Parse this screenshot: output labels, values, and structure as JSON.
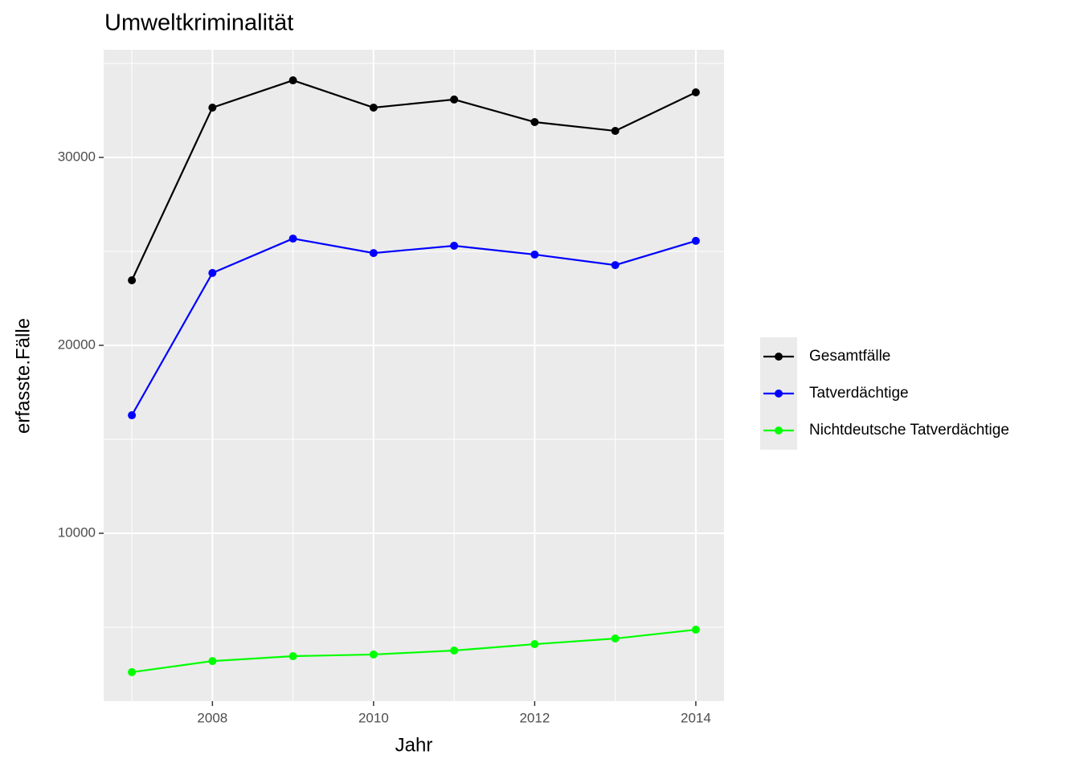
{
  "chart_data": {
    "type": "line",
    "title": "Umweltkriminalität",
    "x_label": "Jahr",
    "y_label": "erfasste.Fälle",
    "x": [
      2007,
      2008,
      2009,
      2010,
      2011,
      2012,
      2013,
      2014
    ],
    "series": [
      {
        "name": "Gesamtfälle",
        "color": "#000000",
        "values": [
          23460,
          32650,
          34100,
          32650,
          33080,
          31880,
          31410,
          33460
        ]
      },
      {
        "name": "Tatverdächtige",
        "color": "#0000ff",
        "values": [
          16280,
          23850,
          25680,
          24910,
          25300,
          24830,
          24270,
          25560
        ]
      },
      {
        "name": "Nichtdeutsche Tatverdächtige",
        "color": "#00ff00",
        "values": [
          2610,
          3200,
          3460,
          3550,
          3760,
          4100,
          4400,
          4870
        ]
      }
    ],
    "xlim": [
      2006.65,
      2014.35
    ],
    "xticks": [
      2008,
      2010,
      2012,
      2014
    ],
    "ylim": [
      1068,
      35726
    ],
    "yticks": [
      10000,
      20000,
      30000
    ],
    "grid": true,
    "legend": "right"
  }
}
